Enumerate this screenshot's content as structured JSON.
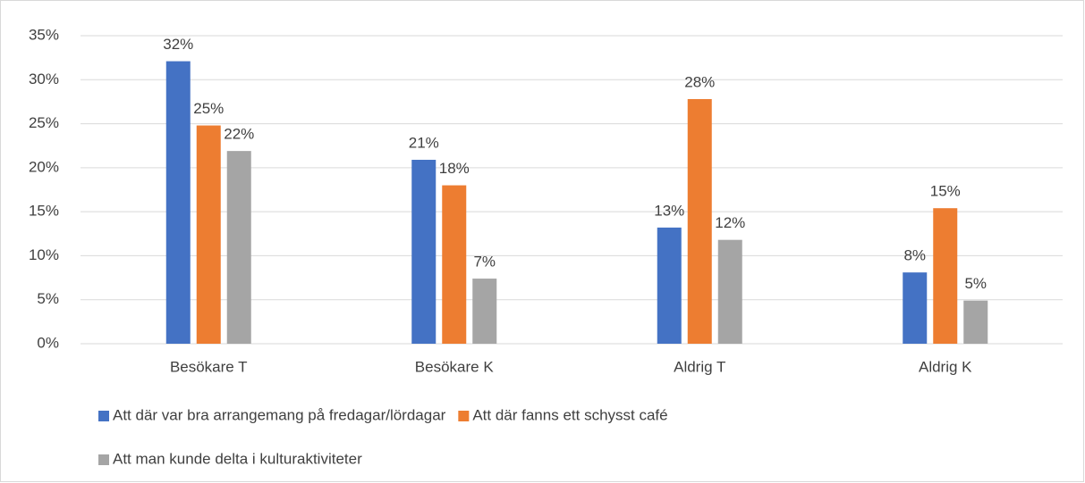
{
  "chart_data": {
    "type": "bar",
    "categories": [
      "Besökare T",
      "Besökare K",
      "Aldrig T",
      "Aldrig K"
    ],
    "series": [
      {
        "name": "Att där var bra arrangemang på fredagar/lördagar",
        "color": "#4472c4",
        "values": [
          32.1,
          20.9,
          13.2,
          8.1
        ],
        "value_labels": [
          "32%",
          "21%",
          "13%",
          "8%"
        ]
      },
      {
        "name": "Att där fanns ett schysst café",
        "color": "#ed7d31",
        "values": [
          24.8,
          18.0,
          27.8,
          15.4
        ],
        "value_labels": [
          "25%",
          "18%",
          "28%",
          "15%"
        ]
      },
      {
        "name": "Att man kunde delta i kulturaktiviteter",
        "color": "#a5a5a5",
        "values": [
          21.9,
          7.4,
          11.8,
          4.9
        ],
        "value_labels": [
          "22%",
          "7%",
          "12%",
          "5%"
        ]
      }
    ],
    "ylim": [
      0,
      35
    ],
    "yticks": [
      {
        "value": 0,
        "label": "0%"
      },
      {
        "value": 5,
        "label": "5%"
      },
      {
        "value": 10,
        "label": "10%"
      },
      {
        "value": 15,
        "label": "15%"
      },
      {
        "value": 20,
        "label": "20%"
      },
      {
        "value": 25,
        "label": "25%"
      },
      {
        "value": 30,
        "label": "30%"
      },
      {
        "value": 35,
        "label": "35%"
      }
    ],
    "grid": true
  }
}
